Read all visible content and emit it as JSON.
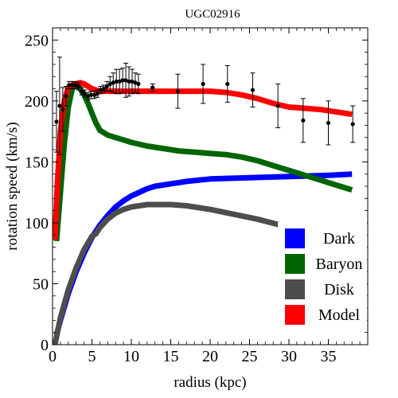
{
  "chart_data": {
    "type": "line",
    "title": "UGC02916",
    "xlabel": "radius (kpc)",
    "ylabel": "rotation speed (km/s)",
    "xlim": [
      0,
      40
    ],
    "ylim": [
      0,
      260
    ],
    "xticks": [
      0,
      5,
      10,
      15,
      20,
      25,
      30,
      35
    ],
    "yticks": [
      0,
      50,
      100,
      150,
      200,
      250
    ],
    "grid": false,
    "legend_position": "bottom-right",
    "series": [
      {
        "name": "Dark",
        "color": "#0000ff",
        "x": [
          0.5,
          1,
          2,
          3,
          4,
          5,
          6,
          7,
          8,
          9,
          10,
          11,
          12,
          13,
          15,
          17,
          20,
          25,
          30,
          35,
          38
        ],
        "y": [
          8,
          20,
          42,
          60,
          75,
          88,
          98,
          106,
          113,
          118,
          122,
          125,
          128,
          130,
          132,
          134,
          136,
          137,
          138,
          139,
          140
        ]
      },
      {
        "name": "Baryon",
        "color": "#006400",
        "x": [
          0.5,
          1,
          1.5,
          2,
          2.5,
          3,
          3.5,
          4,
          4.5,
          5,
          5.5,
          6,
          7,
          8,
          9,
          10,
          12,
          14,
          16,
          18,
          20,
          22,
          24,
          26,
          28,
          30,
          32,
          34,
          36,
          38
        ],
        "y": [
          85,
          125,
          165,
          195,
          210,
          214,
          210,
          205,
          198,
          190,
          182,
          176,
          172,
          170,
          168,
          166,
          163,
          161,
          159,
          158,
          157,
          156,
          154,
          151,
          147,
          143,
          139,
          135,
          131,
          127
        ]
      },
      {
        "name": "Disk",
        "color": "#4d4d4d",
        "x": [
          0.3,
          1,
          2,
          3,
          4,
          5,
          5.5,
          6,
          7,
          8,
          9,
          10,
          11,
          12,
          13,
          15,
          17,
          20,
          23,
          26,
          29,
          32,
          35,
          38
        ],
        "y": [
          0,
          22,
          45,
          63,
          78,
          89,
          91,
          96,
          103,
          108,
          111,
          113,
          114,
          115,
          115,
          115,
          114,
          111,
          107,
          103,
          98,
          93,
          88,
          84
        ]
      },
      {
        "name": "Model",
        "color": "#ff0000",
        "x": [
          0.3,
          0.6,
          1,
          1.5,
          2,
          2.5,
          3,
          3.5,
          4,
          5,
          6,
          8,
          10,
          12,
          15,
          18,
          20,
          22,
          24,
          26,
          28,
          30,
          32,
          34,
          36,
          38
        ],
        "y": [
          86,
          130,
          175,
          200,
          211,
          213,
          214,
          215,
          214,
          210,
          208,
          208,
          208,
          208,
          208,
          208,
          208,
          207,
          205,
          202,
          198,
          195,
          194,
          193,
          191,
          189
        ]
      }
    ],
    "observations": {
      "name": "data",
      "color": "#000000",
      "points": [
        {
          "x": 0.5,
          "y": 183,
          "err": 25
        },
        {
          "x": 0.9,
          "y": 196,
          "err": 40
        },
        {
          "x": 1.3,
          "y": 193,
          "err": 18
        },
        {
          "x": 1.7,
          "y": 204,
          "err": 8
        },
        {
          "x": 2.1,
          "y": 213,
          "err": 3
        },
        {
          "x": 2.5,
          "y": 213,
          "err": 3
        },
        {
          "x": 2.9,
          "y": 213,
          "err": 3
        },
        {
          "x": 3.3,
          "y": 212,
          "err": 3
        },
        {
          "x": 3.7,
          "y": 208,
          "err": 3
        },
        {
          "x": 4.1,
          "y": 206,
          "err": 3
        },
        {
          "x": 4.5,
          "y": 204,
          "err": 3
        },
        {
          "x": 4.9,
          "y": 205,
          "err": 3
        },
        {
          "x": 5.3,
          "y": 205,
          "err": 3
        },
        {
          "x": 5.7,
          "y": 206,
          "err": 3
        },
        {
          "x": 6.1,
          "y": 209,
          "err": 3
        },
        {
          "x": 6.5,
          "y": 210,
          "err": 3
        },
        {
          "x": 6.9,
          "y": 212,
          "err": 4
        },
        {
          "x": 7.3,
          "y": 214,
          "err": 6
        },
        {
          "x": 7.7,
          "y": 215,
          "err": 8
        },
        {
          "x": 8.1,
          "y": 216,
          "err": 10
        },
        {
          "x": 8.5,
          "y": 216,
          "err": 10
        },
        {
          "x": 8.9,
          "y": 217,
          "err": 10
        },
        {
          "x": 9.3,
          "y": 217,
          "err": 14
        },
        {
          "x": 9.7,
          "y": 216,
          "err": 12
        },
        {
          "x": 10.1,
          "y": 216,
          "err": 10
        },
        {
          "x": 10.5,
          "y": 215,
          "err": 8
        },
        {
          "x": 10.9,
          "y": 214,
          "err": 8
        },
        {
          "x": 12.7,
          "y": 211,
          "err": 3
        },
        {
          "x": 15.9,
          "y": 208,
          "err": 14
        },
        {
          "x": 19.1,
          "y": 214,
          "err": 16
        },
        {
          "x": 22.2,
          "y": 214,
          "err": 15
        },
        {
          "x": 25.4,
          "y": 209,
          "err": 14
        },
        {
          "x": 28.6,
          "y": 196,
          "err": 18
        },
        {
          "x": 31.8,
          "y": 184,
          "err": 18
        },
        {
          "x": 35.0,
          "y": 182,
          "err": 18
        },
        {
          "x": 38.1,
          "y": 181,
          "err": 15
        }
      ]
    }
  }
}
